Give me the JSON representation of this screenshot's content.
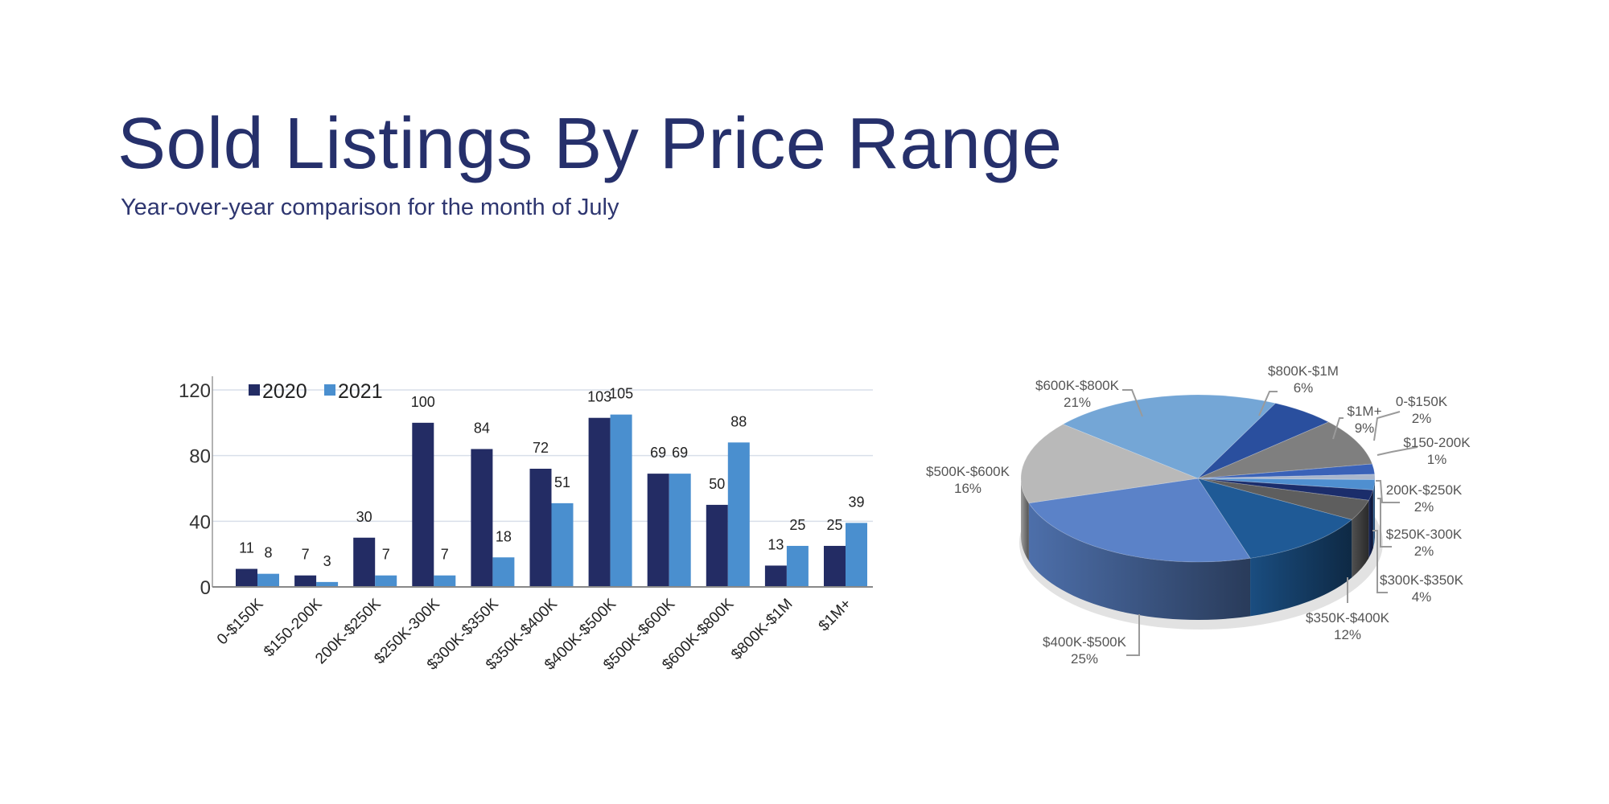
{
  "title": "Sold Listings By Price Range",
  "subtitle": "Year-over-year comparison for the month of July",
  "chart_data": [
    {
      "type": "bar",
      "categories": [
        "0-$150K",
        "$150-200K",
        "200K-$250K",
        "$250K-300K",
        "$300K-$350K",
        "$350K-$400K",
        "$400K-$500K",
        "$500K-$600K",
        "$600K-$800K",
        "$800K-$1M",
        "$1M+"
      ],
      "series": [
        {
          "name": "2020",
          "color": "#232c64",
          "values": [
            11,
            7,
            30,
            100,
            84,
            72,
            103,
            69,
            50,
            13,
            25
          ]
        },
        {
          "name": "2021",
          "color": "#4a8fcf",
          "values": [
            8,
            3,
            7,
            7,
            18,
            51,
            105,
            69,
            88,
            25,
            39
          ]
        }
      ],
      "yticks": [
        "0",
        "40",
        "80",
        "120"
      ],
      "ylim": [
        0,
        120
      ],
      "grid": true,
      "legend": "top-left",
      "data_labels": true
    },
    {
      "type": "pie",
      "style": "3d",
      "slices": [
        {
          "label": "0-$150K",
          "pct": "2%",
          "value": 2,
          "color": "#3a62b8"
        },
        {
          "label": "$150-200K",
          "pct": "1%",
          "value": 1,
          "color": "#a9b6cc"
        },
        {
          "label": "200K-$250K",
          "pct": "2%",
          "value": 2,
          "color": "#4f8fd0"
        },
        {
          "label": "$250K-300K",
          "pct": "2%",
          "value": 2,
          "color": "#1b2d6b"
        },
        {
          "label": "$300K-$350K",
          "pct": "4%",
          "value": 4,
          "color": "#5e5e5e"
        },
        {
          "label": "$350K-$400K",
          "pct": "12%",
          "value": 12,
          "color": "#1f5a96"
        },
        {
          "label": "$400K-$500K",
          "pct": "25%",
          "value": 25,
          "color": "#5b82c8"
        },
        {
          "label": "$500K-$600K",
          "pct": "16%",
          "value": 16,
          "color": "#b9b9b9"
        },
        {
          "label": "$600K-$800K",
          "pct": "21%",
          "value": 21,
          "color": "#74a6d6"
        },
        {
          "label": "$800K-$1M",
          "pct": "6%",
          "value": 6,
          "color": "#2a4f9e"
        },
        {
          "label": "$1M+",
          "pct": "9%",
          "value": 9,
          "color": "#7f7f7f"
        }
      ]
    }
  ]
}
